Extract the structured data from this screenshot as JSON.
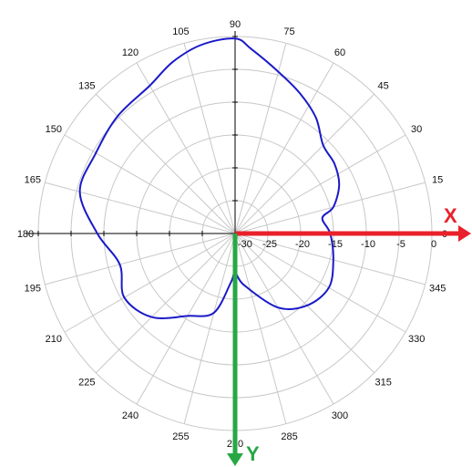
{
  "chart_data": {
    "type": "polar-line",
    "angle_unit": "degrees",
    "angle_ticks": [
      "0",
      "15",
      "30",
      "45",
      "60",
      "75",
      "90",
      "105",
      "120",
      "135",
      "150",
      "165",
      "180",
      "195",
      "210",
      "225",
      "240",
      "255",
      "270",
      "285",
      "300",
      "315",
      "330",
      "345"
    ],
    "radial_ticks": [
      "0",
      "-5",
      "-10",
      "-15",
      "-20",
      "-25",
      "-30"
    ],
    "radial_range": [
      -30,
      0
    ],
    "grid": true,
    "series": [
      {
        "color": "#1a1ac8",
        "points": [
          {
            "angle": 0,
            "value": -15.5
          },
          {
            "angle": 10,
            "value": -16.5
          },
          {
            "angle": 15,
            "value": -14.5
          },
          {
            "angle": 25,
            "value": -12.5
          },
          {
            "angle": 35,
            "value": -11.5
          },
          {
            "angle": 45,
            "value": -11.0
          },
          {
            "angle": 55,
            "value": -8.5
          },
          {
            "angle": 65,
            "value": -6.5
          },
          {
            "angle": 75,
            "value": -4.5
          },
          {
            "angle": 85,
            "value": -1.8
          },
          {
            "angle": 90,
            "value": -0.3
          },
          {
            "angle": 100,
            "value": -0.8
          },
          {
            "angle": 110,
            "value": -2.2
          },
          {
            "angle": 120,
            "value": -4.0
          },
          {
            "angle": 135,
            "value": -4.7
          },
          {
            "angle": 150,
            "value": -5.5
          },
          {
            "angle": 165,
            "value": -5.5
          },
          {
            "angle": 180,
            "value": -9.0
          },
          {
            "angle": 195,
            "value": -11.8
          },
          {
            "angle": 210,
            "value": -10.5
          },
          {
            "angle": 225,
            "value": -12.0
          },
          {
            "angle": 240,
            "value": -15.5
          },
          {
            "angle": 255,
            "value": -17.5
          },
          {
            "angle": 265,
            "value": -22.5
          },
          {
            "angle": 270,
            "value": -24.0
          },
          {
            "angle": 280,
            "value": -22.0
          },
          {
            "angle": 300,
            "value": -17.0
          },
          {
            "angle": 315,
            "value": -14.5
          },
          {
            "angle": 330,
            "value": -13.5
          },
          {
            "angle": 345,
            "value": -14.5
          },
          {
            "angle": 360,
            "value": -15.5
          }
        ]
      }
    ]
  },
  "overlay": {
    "x_axis": {
      "label": "X",
      "color": "#e8212b"
    },
    "y_axis": {
      "label": "Y",
      "color": "#27a845"
    }
  },
  "colors": {
    "grid": "#c8c8c8",
    "axis": "#000000",
    "series": "#1a1ac8"
  }
}
